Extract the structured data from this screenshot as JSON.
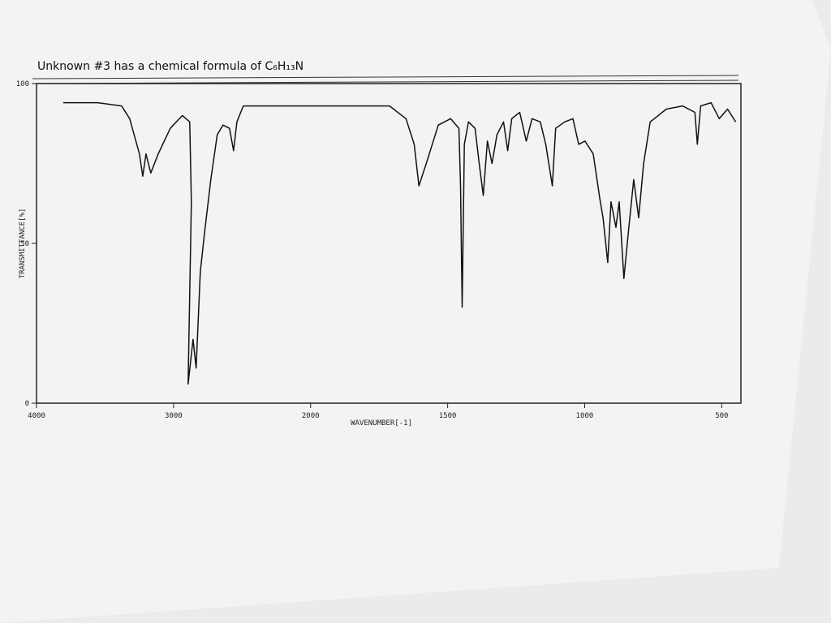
{
  "chart_data": {
    "type": "line",
    "title": "Unknown #3 has a chemical formula of C₆H₁₃N",
    "x_label": "WAVENUMBER[-1]",
    "y_label": "TRANSMITTANCE[%]",
    "xlim": [
      4000,
      430
    ],
    "ylim": [
      0,
      100
    ],
    "xticks": [
      4000,
      3000,
      2000,
      1500,
      1000,
      500
    ],
    "yticks": [
      0,
      50,
      100
    ],
    "series": [
      {
        "color": "#111111",
        "x": [
          3805,
          3556,
          3379,
          3320,
          3249,
          3225,
          3201,
          3166,
          3112,
          3024,
          2935,
          2882,
          2870,
          2894,
          2858,
          2835,
          2805,
          2775,
          2728,
          2681,
          2639,
          2592,
          2562,
          2538,
          2491,
          2254,
          1950,
          1712,
          1652,
          1622,
          1605,
          1578,
          1534,
          1489,
          1459,
          1453,
          1447,
          1439,
          1424,
          1400,
          1385,
          1370,
          1355,
          1338,
          1320,
          1296,
          1281,
          1266,
          1237,
          1213,
          1192,
          1162,
          1142,
          1118,
          1106,
          1073,
          1043,
          1022,
          999,
          969,
          945,
          933,
          916,
          904,
          886,
          874,
          857,
          839,
          821,
          803,
          785,
          761,
          702,
          643,
          598,
          589,
          577,
          539,
          509,
          479,
          449
        ],
        "values": [
          94,
          94,
          93,
          89,
          78,
          71,
          78,
          72,
          78,
          86,
          90,
          88,
          63,
          6,
          20,
          11,
          41,
          53,
          70,
          84,
          87,
          86,
          79,
          88,
          93,
          93,
          93,
          93,
          89,
          81,
          68,
          75,
          87,
          89,
          86,
          68,
          30,
          81,
          88,
          86,
          75,
          65,
          82,
          75,
          84,
          88,
          79,
          89,
          91,
          82,
          89,
          88,
          81,
          68,
          86,
          88,
          89,
          81,
          82,
          78,
          64,
          58,
          44,
          63,
          55,
          63,
          39,
          55,
          70,
          58,
          75,
          88,
          92,
          93,
          91,
          81,
          93,
          94,
          89,
          92,
          88
        ]
      }
    ]
  }
}
